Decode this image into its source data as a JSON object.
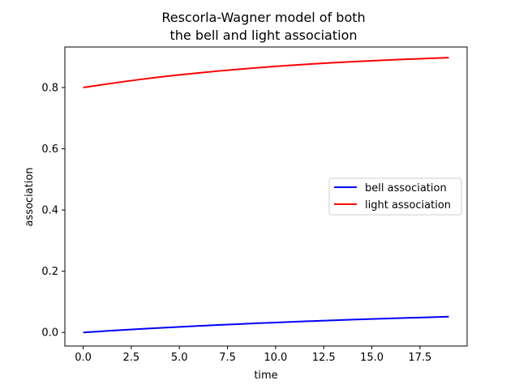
{
  "chart_data": {
    "type": "line",
    "title": [
      "Rescorla-Wagner model of both",
      "the bell and light association"
    ],
    "xlabel": "time",
    "ylabel": "association",
    "xlim": [
      -0.95,
      19.95
    ],
    "ylim": [
      -0.0444,
      0.9325
    ],
    "xticks": [
      0.0,
      2.5,
      5.0,
      7.5,
      10.0,
      12.5,
      15.0,
      17.5
    ],
    "xtick_labels": [
      "0.0",
      "2.5",
      "5.0",
      "7.5",
      "10.0",
      "12.5",
      "15.0",
      "17.5"
    ],
    "yticks": [
      0.0,
      0.2,
      0.4,
      0.6,
      0.8
    ],
    "ytick_labels": [
      "0.0",
      "0.2",
      "0.4",
      "0.6",
      "0.8"
    ],
    "grid": false,
    "legend_position": "center-right",
    "x": [
      0,
      1,
      2,
      3,
      4,
      5,
      6,
      7,
      8,
      9,
      10,
      11,
      12,
      13,
      14,
      15,
      16,
      17,
      18,
      19
    ],
    "series": [
      {
        "name": "bell association",
        "color": "#0000ff",
        "values": [
          0.0,
          0.004,
          0.0078,
          0.0114,
          0.0149,
          0.0182,
          0.0213,
          0.0243,
          0.0272,
          0.0299,
          0.0325,
          0.035,
          0.0374,
          0.0397,
          0.0419,
          0.044,
          0.046,
          0.0479,
          0.0497,
          0.0514
        ]
      },
      {
        "name": "light association",
        "color": "#ff0000",
        "values": [
          0.8,
          0.8095,
          0.8185,
          0.8268,
          0.8344,
          0.8414,
          0.8479,
          0.8539,
          0.8594,
          0.8645,
          0.8692,
          0.8735,
          0.8775,
          0.8811,
          0.8845,
          0.8876,
          0.8904,
          0.893,
          0.8954,
          0.8976
        ]
      }
    ]
  }
}
